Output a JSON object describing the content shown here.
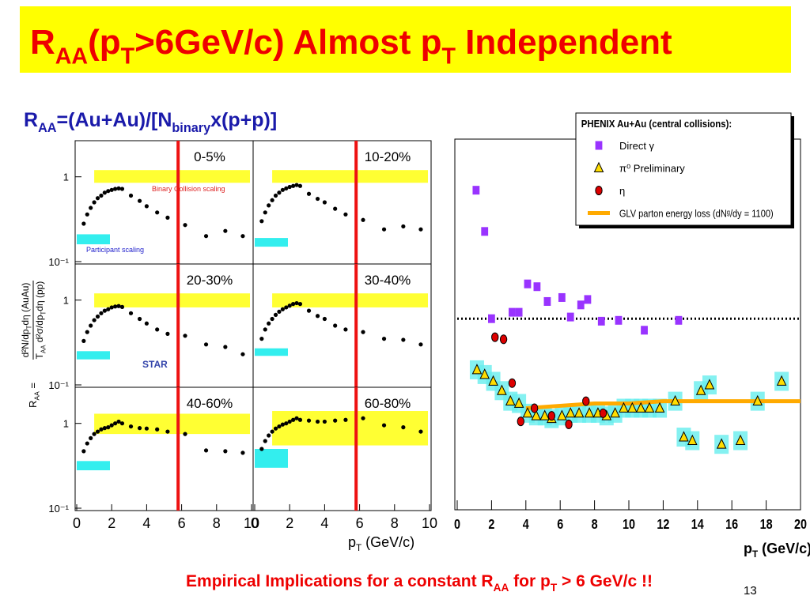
{
  "header": {
    "title_parts": [
      "R",
      {
        "sub": "AA"
      },
      "(p",
      {
        "sub": "T"
      },
      ">6GeV/c) Almost p",
      {
        "sub": "T"
      },
      " Independent"
    ]
  },
  "subtitle_parts": [
    "R",
    {
      "sub": "AA"
    },
    "=(Au+Au)/[N",
    {
      "sub": "binary"
    },
    "x(p+p)]"
  ],
  "shared_y_label": {
    "lhs_parts": [
      "R",
      {
        "sub": "AA"
      },
      " ="
    ],
    "numerator_parts": [
      "d²N/dp",
      {
        "sub": "T"
      },
      "dη (AuAu)"
    ],
    "denominator_parts": [
      "T",
      {
        "sub": "AA"
      },
      " d²σ/dp",
      {
        "sub": "T"
      },
      "dη (pp)"
    ]
  },
  "shared_x_label_parts": [
    "p",
    {
      "sub": "T"
    },
    " (GeV/c)"
  ],
  "chart_data": [
    {
      "type": "scatter",
      "label": "0-5%",
      "log_y": true,
      "xlim": [
        0,
        10
      ],
      "ylim": [
        0.1,
        2.5
      ],
      "yticks": [
        {
          "value": 0.1,
          "label": "10⁻¹"
        },
        1
      ],
      "x": [
        0.4,
        0.6,
        0.8,
        1.0,
        1.2,
        1.4,
        1.6,
        1.8,
        2.0,
        2.2,
        2.4,
        2.6,
        3.1,
        3.6,
        4.0,
        4.6,
        5.2,
        6.2,
        7.4,
        8.5,
        9.5
      ],
      "values": [
        0.28,
        0.36,
        0.43,
        0.5,
        0.56,
        0.6,
        0.65,
        0.68,
        0.7,
        0.72,
        0.73,
        0.72,
        0.6,
        0.52,
        0.45,
        0.38,
        0.33,
        0.27,
        0.2,
        0.23,
        0.2
      ],
      "binary_band": [
        0.85,
        1.2
      ],
      "participant_band": [
        0.16,
        0.21
      ],
      "cut_x": 5.8,
      "color": "#000000",
      "annotations": [
        "Binary Collision scaling",
        "Participant scaling"
      ]
    },
    {
      "type": "scatter",
      "label": "10-20%",
      "log_y": true,
      "xlim": [
        0,
        10
      ],
      "ylim": [
        0.1,
        2.5
      ],
      "x": [
        0.4,
        0.6,
        0.8,
        1.0,
        1.2,
        1.4,
        1.6,
        1.8,
        2.0,
        2.2,
        2.4,
        2.6,
        3.1,
        3.6,
        4.0,
        4.6,
        5.2,
        6.2,
        7.4,
        8.5,
        9.5
      ],
      "values": [
        0.3,
        0.38,
        0.46,
        0.53,
        0.6,
        0.65,
        0.7,
        0.73,
        0.76,
        0.78,
        0.8,
        0.78,
        0.63,
        0.55,
        0.5,
        0.42,
        0.36,
        0.31,
        0.24,
        0.26,
        0.24
      ],
      "binary_band": [
        0.85,
        1.2
      ],
      "participant_band": [
        0.15,
        0.19
      ],
      "cut_x": 5.8,
      "color": "#000000"
    },
    {
      "type": "scatter",
      "label": "20-30%",
      "log_y": true,
      "xlim": [
        0,
        10
      ],
      "ylim": [
        0.1,
        2.5
      ],
      "yticks": [
        {
          "value": 0.1,
          "label": "10⁻¹"
        },
        1
      ],
      "x": [
        0.4,
        0.6,
        0.8,
        1.0,
        1.2,
        1.4,
        1.6,
        1.8,
        2.0,
        2.2,
        2.4,
        2.6,
        3.1,
        3.6,
        4.0,
        4.6,
        5.2,
        6.2,
        7.4,
        8.5,
        9.5
      ],
      "values": [
        0.33,
        0.42,
        0.5,
        0.58,
        0.64,
        0.7,
        0.75,
        0.78,
        0.82,
        0.84,
        0.85,
        0.83,
        0.7,
        0.6,
        0.53,
        0.45,
        0.4,
        0.38,
        0.3,
        0.28,
        0.23
      ],
      "binary_band": [
        0.82,
        1.2
      ],
      "participant_band": [
        0.2,
        0.25
      ],
      "cut_x": 5.8,
      "color": "#000000",
      "logo": "STAR"
    },
    {
      "type": "scatter",
      "label": "30-40%",
      "log_y": true,
      "xlim": [
        0,
        10
      ],
      "ylim": [
        0.1,
        2.5
      ],
      "x": [
        0.4,
        0.6,
        0.8,
        1.0,
        1.2,
        1.4,
        1.6,
        1.8,
        2.0,
        2.2,
        2.4,
        2.6,
        3.1,
        3.6,
        4.0,
        4.6,
        5.2,
        6.2,
        7.4,
        8.5,
        9.5
      ],
      "values": [
        0.35,
        0.45,
        0.53,
        0.6,
        0.67,
        0.73,
        0.78,
        0.82,
        0.86,
        0.9,
        0.92,
        0.9,
        0.75,
        0.65,
        0.6,
        0.5,
        0.45,
        0.42,
        0.35,
        0.34,
        0.3
      ],
      "binary_band": [
        0.82,
        1.2
      ],
      "participant_band": [
        0.22,
        0.27
      ],
      "cut_x": 5.8,
      "color": "#000000"
    },
    {
      "type": "scatter",
      "label": "40-60%",
      "log_y": true,
      "xlim": [
        0,
        10
      ],
      "ylim": [
        0.1,
        2.5
      ],
      "yticks": [
        {
          "value": 0.1,
          "label": "10⁻¹"
        },
        1
      ],
      "xticks": [
        0,
        2,
        4,
        6,
        8,
        10
      ],
      "x": [
        0.4,
        0.6,
        0.8,
        1.0,
        1.2,
        1.4,
        1.6,
        1.8,
        2.0,
        2.2,
        2.4,
        2.6,
        3.1,
        3.6,
        4.0,
        4.6,
        5.2,
        6.2,
        7.4,
        8.5,
        9.5
      ],
      "values": [
        0.47,
        0.58,
        0.67,
        0.75,
        0.8,
        0.85,
        0.88,
        0.9,
        0.95,
        1.0,
        1.05,
        1.0,
        0.92,
        0.88,
        0.87,
        0.85,
        0.8,
        0.75,
        0.48,
        0.47,
        0.45
      ],
      "binary_band": [
        0.75,
        1.3
      ],
      "participant_band": [
        0.28,
        0.36
      ],
      "cut_x": 5.8,
      "color": "#000000"
    },
    {
      "type": "scatter",
      "label": "60-80%",
      "log_y": true,
      "xlim": [
        0,
        10
      ],
      "ylim": [
        0.1,
        2.5
      ],
      "xticks": [
        0,
        2,
        4,
        6,
        8,
        10
      ],
      "x": [
        0.4,
        0.6,
        0.8,
        1.0,
        1.2,
        1.4,
        1.6,
        1.8,
        2.0,
        2.2,
        2.4,
        2.6,
        3.1,
        3.6,
        4.0,
        4.6,
        5.2,
        6.2,
        7.4,
        8.5,
        9.5
      ],
      "values": [
        0.5,
        0.62,
        0.72,
        0.8,
        0.87,
        0.92,
        0.97,
        1.0,
        1.05,
        1.1,
        1.15,
        1.1,
        1.08,
        1.05,
        1.05,
        1.08,
        1.1,
        1.15,
        0.95,
        0.9,
        0.8
      ],
      "binary_band": [
        0.55,
        1.4
      ],
      "participant_band": [
        0.3,
        0.5
      ],
      "cut_x": 5.8,
      "color": "#000000"
    },
    {
      "type": "scatter",
      "log_y": true,
      "xlim": [
        0,
        20
      ],
      "ylim": [
        0.1,
        8.7
      ],
      "xticks": [
        0,
        2,
        4,
        6,
        8,
        10,
        12,
        14,
        16,
        18,
        20
      ],
      "reference_y": 1,
      "legend": "upper right",
      "legend_title": "PHENIX Au+Au (central collisions):",
      "x_label_parts": [
        "p",
        {
          "sub": "T"
        },
        " (GeV/c)"
      ],
      "series": [
        {
          "name": "Direct γ",
          "color": "#9933ff",
          "marker": "square",
          "x": [
            1.1,
            1.6,
            2.0,
            3.2,
            3.6,
            4.1,
            4.65,
            5.25,
            6.1,
            6.6,
            7.2,
            7.6,
            8.4,
            9.4,
            10.9,
            12.9
          ],
          "values": [
            4.7,
            2.86,
            1.0,
            1.08,
            1.08,
            1.52,
            1.47,
            1.23,
            1.29,
            1.02,
            1.18,
            1.26,
            0.97,
            0.98,
            0.87,
            0.98
          ]
        },
        {
          "name": "π⁰ Preliminary",
          "color": "#ffdd00",
          "marker": "triangle",
          "x": [
            1.15,
            1.6,
            2.1,
            2.6,
            3.1,
            3.6,
            4.1,
            4.6,
            5.1,
            5.5,
            6.1,
            6.6,
            7.1,
            7.7,
            8.2,
            8.7,
            9.2,
            9.7,
            10.2,
            10.7,
            11.2,
            11.8,
            12.7,
            13.2,
            13.7,
            14.2,
            14.7,
            15.4,
            16.5,
            17.5,
            18.9
          ],
          "values": [
            0.54,
            0.51,
            0.47,
            0.42,
            0.37,
            0.36,
            0.32,
            0.31,
            0.31,
            0.3,
            0.31,
            0.32,
            0.32,
            0.32,
            0.32,
            0.31,
            0.32,
            0.34,
            0.34,
            0.34,
            0.34,
            0.34,
            0.37,
            0.24,
            0.23,
            0.42,
            0.45,
            0.22,
            0.23,
            0.37,
            0.47
          ]
        },
        {
          "name": "η",
          "color": "#dd0000",
          "marker": "circle",
          "x": [
            2.2,
            2.7,
            3.2,
            3.7,
            4.5,
            5.5,
            6.5,
            7.5,
            8.5
          ],
          "values": [
            0.8,
            0.78,
            0.46,
            0.29,
            0.34,
            0.31,
            0.28,
            0.37,
            0.32
          ]
        },
        {
          "name": "GLV parton energy loss (dNᵍ/dy = 1100)",
          "color": "#ffaa00",
          "marker": "line",
          "x": [
            4,
            6,
            8,
            10,
            12,
            14,
            16,
            18,
            20
          ],
          "values": [
            0.34,
            0.35,
            0.36,
            0.36,
            0.37,
            0.37,
            0.37,
            0.37,
            0.37
          ]
        }
      ]
    }
  ],
  "footer": {
    "text_parts": [
      "Empirical Implications for a constant R",
      {
        "sub": "AA"
      },
      " for p",
      {
        "sub": "T"
      },
      " > 6 GeV/c !!"
    ],
    "page_number": "13"
  }
}
